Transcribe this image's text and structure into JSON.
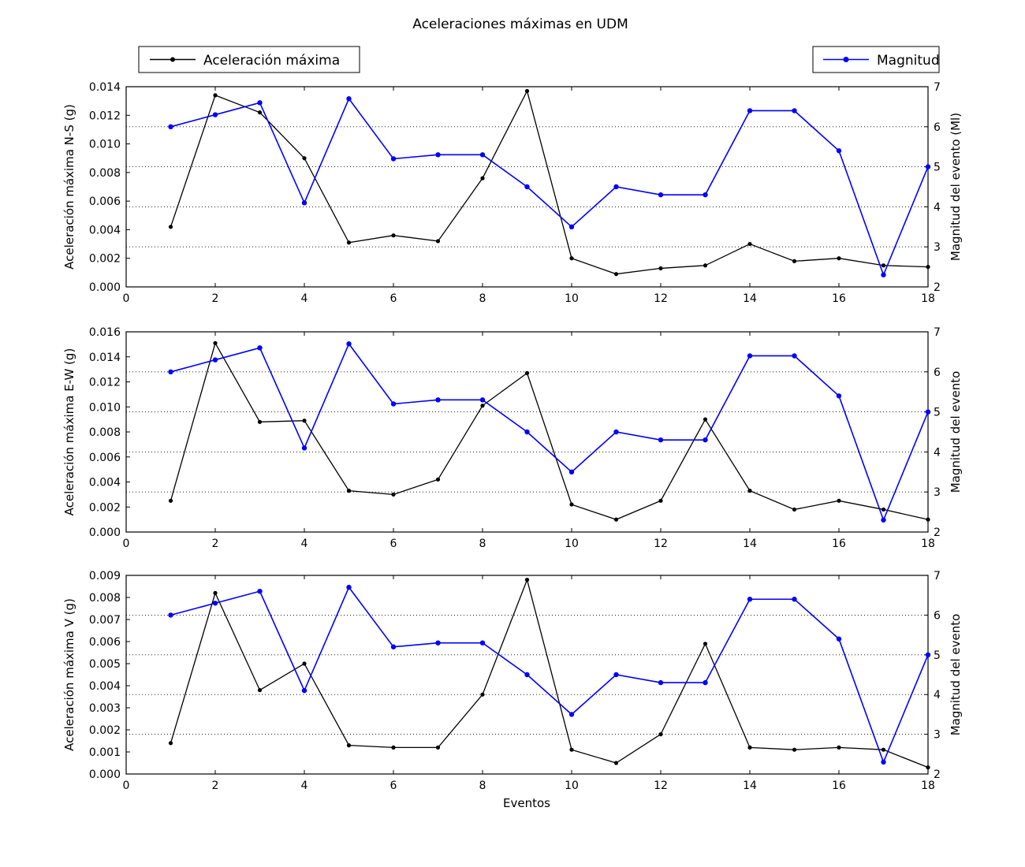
{
  "title": "Aceleraciones máximas en UDM",
  "xlabel": "Eventos",
  "legend": {
    "aceleracion": "Aceleración máxima",
    "magnitud": "Magnitud"
  },
  "colors": {
    "aceleracion": "#000000",
    "magnitud": "#0000ff",
    "grid": "#000000"
  },
  "chart_data": {
    "type": "line",
    "x": [
      1,
      2,
      3,
      4,
      5,
      6,
      7,
      8,
      9,
      10,
      11,
      12,
      13,
      14,
      15,
      16,
      17,
      18
    ],
    "xlim": [
      0,
      18
    ],
    "xticks": [
      0,
      2,
      4,
      6,
      8,
      10,
      12,
      14,
      16,
      18
    ],
    "right_axis": {
      "lim": [
        2,
        7
      ],
      "ticks": [
        2,
        3,
        4,
        5,
        6,
        7
      ],
      "gridlines": [
        3,
        4,
        5,
        6
      ]
    },
    "magnitud": [
      6.0,
      6.3,
      6.6,
      4.1,
      6.7,
      5.2,
      5.3,
      5.3,
      4.5,
      3.5,
      4.5,
      4.3,
      4.3,
      6.4,
      6.4,
      5.4,
      2.3,
      5.0
    ],
    "subplots": [
      {
        "ylabel": "Aceleración máxima N-S (g)",
        "right_label": "Magnitud del evento (Ml)",
        "ylim": [
          0,
          0.014
        ],
        "ystep": 0.002,
        "values": [
          0.0042,
          0.0134,
          0.0122,
          0.009,
          0.0031,
          0.0036,
          0.0032,
          0.0076,
          0.0137,
          0.002,
          0.0009,
          0.0013,
          0.0015,
          0.003,
          0.0018,
          0.002,
          0.0015,
          0.0014
        ]
      },
      {
        "ylabel": "Aceleración máxima E-W (g)",
        "right_label": "Magnitud del evento",
        "ylim": [
          0,
          0.016
        ],
        "ystep": 0.002,
        "values": [
          0.0025,
          0.0151,
          0.0088,
          0.0089,
          0.0033,
          0.003,
          0.0042,
          0.0101,
          0.0127,
          0.0022,
          0.001,
          0.0025,
          0.009,
          0.0033,
          0.0018,
          0.0025,
          0.0018,
          0.001
        ]
      },
      {
        "ylabel": "Aceleración máxima V (g)",
        "right_label": "Magnitud del evento",
        "ylim": [
          0,
          0.009
        ],
        "ystep": 0.001,
        "values": [
          0.0014,
          0.0082,
          0.0038,
          0.005,
          0.0013,
          0.0012,
          0.0012,
          0.0036,
          0.0088,
          0.0011,
          0.0005,
          0.0018,
          0.0059,
          0.0012,
          0.0011,
          0.0012,
          0.0011,
          0.0003
        ]
      }
    ]
  }
}
